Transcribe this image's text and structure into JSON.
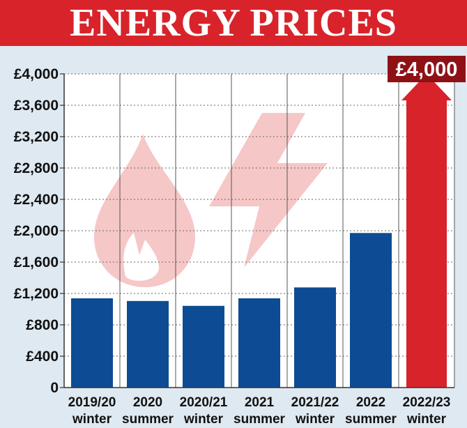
{
  "header": {
    "title": "ENERGY PRICES"
  },
  "chart_data": {
    "type": "bar",
    "title": "ENERGY PRICES",
    "categories": [
      [
        "2019/20",
        "winter"
      ],
      [
        "2020",
        "summer"
      ],
      [
        "2020/21",
        "winter"
      ],
      [
        "2021",
        "summer"
      ],
      [
        "2021/22",
        "winter"
      ],
      [
        "2022",
        "summer"
      ],
      [
        "2022/23",
        "winter"
      ]
    ],
    "values": [
      1138,
      1104,
      1042,
      1138,
      1277,
      1971,
      4000
    ],
    "ylim": [
      0,
      4000
    ],
    "yticks": [
      0,
      400,
      800,
      1200,
      1600,
      2000,
      2400,
      2800,
      3200,
      3600,
      4000
    ],
    "ytick_labels": [
      "0",
      "£400",
      "£800",
      "£1,200",
      "£1,600",
      "£2,000",
      "£2,400",
      "£2,800",
      "£3,200",
      "£3,600",
      "£4,000"
    ],
    "grid": true,
    "annotation": "£4,000",
    "colors": {
      "bar": "#0d4c94",
      "highlight_bar": "#d8232a",
      "callout_bg": "#8e1116",
      "background": "#dfe9f1",
      "plot_bg": "#ffffff",
      "watermark": "#f4c9c9"
    },
    "watermark_icons": [
      "gas-flame-icon",
      "lightning-bolt-icon"
    ]
  }
}
